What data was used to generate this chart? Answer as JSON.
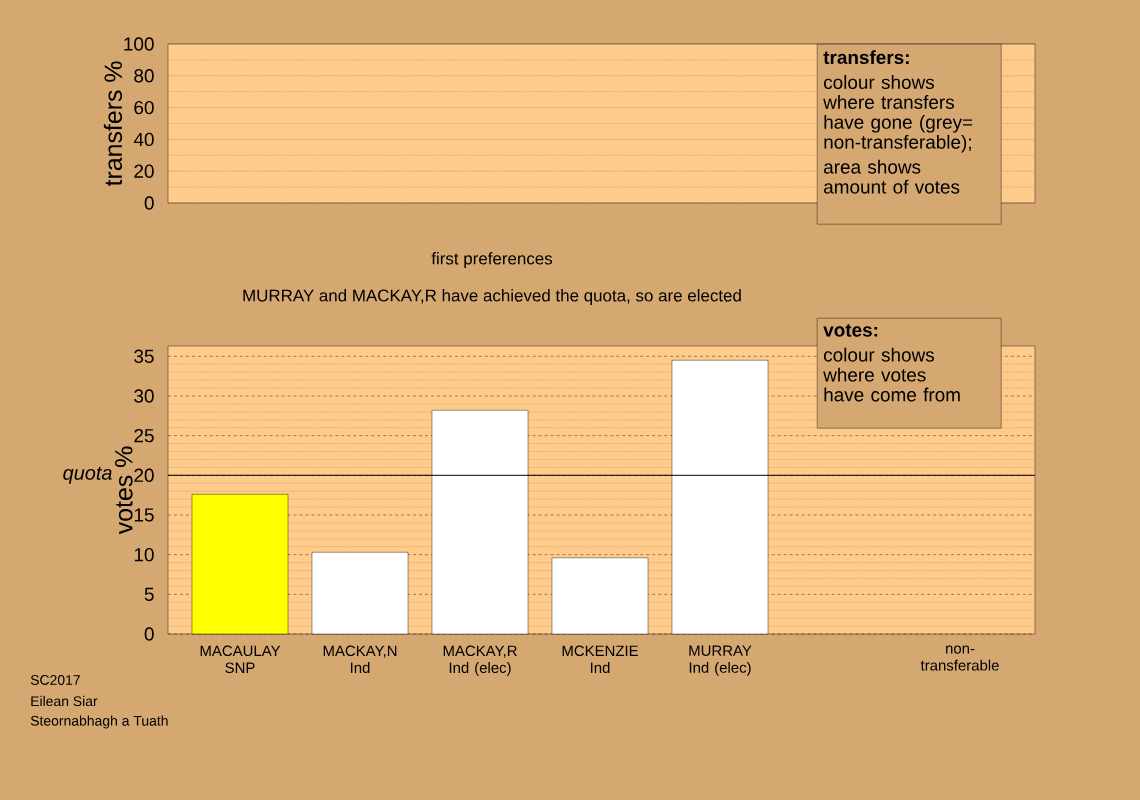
{
  "chart_data": [
    {
      "type": "bar",
      "ylabel": "transfers %",
      "categories": [
        null,
        null,
        null,
        null,
        null,
        null,
        null
      ],
      "values": [
        null,
        null,
        null,
        null,
        null,
        null,
        null
      ],
      "ylim": [
        0,
        100
      ],
      "yticks": [
        0,
        20,
        40,
        60,
        80,
        100
      ],
      "grid": "y",
      "tick_labels": "y",
      "annotations": [
        "transfers:",
        "colour shows where transfers have gone (grey= non-transferable);",
        "area shows amount of votes"
      ]
    },
    {
      "type": "bar",
      "title": "first preferences",
      "subtitle": "MURRAY and MACKAY,R have achieved the quota, so are elected",
      "ylabel": "votes %",
      "categories": [
        "MACAULAY SNP",
        "MACKAY,N Ind",
        "MACKAY,R Ind (elec)",
        "MCKENZIE Ind",
        "MURRAY Ind (elec)",
        null,
        "non-transferable"
      ],
      "values": [
        17.6,
        10.3,
        28.2,
        9.6,
        34.5,
        null,
        null
      ],
      "colors": [
        "#ffff00",
        "#ffffff",
        "#ffffff",
        "#ffffff",
        "#ffffff",
        "#ffffff",
        "#ffffff"
      ],
      "ylim": [
        0,
        36.3
      ],
      "yticks": [
        0,
        5,
        10,
        15,
        20,
        25,
        30,
        35
      ],
      "grid": "y",
      "ref_lines": [
        {
          "axis": "y",
          "value": 20,
          "label": "quota"
        }
      ],
      "annotations": [
        "votes:",
        "colour shows where votes have come from",
        "SC2017",
        "Eilean Siar",
        "Steornabhagh a Tuath"
      ]
    }
  ]
}
